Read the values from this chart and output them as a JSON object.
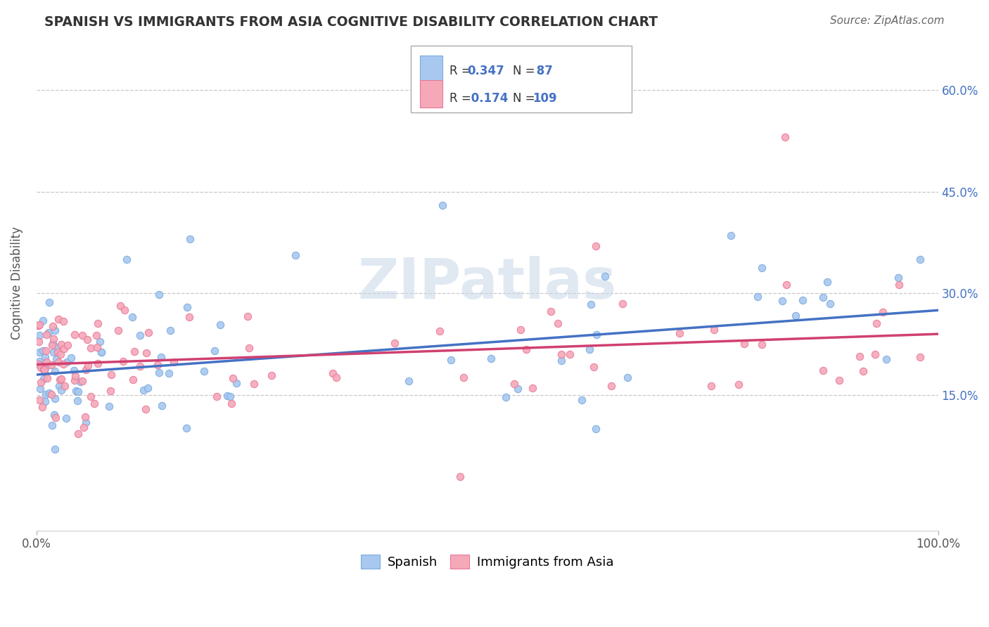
{
  "title": "SPANISH VS IMMIGRANTS FROM ASIA COGNITIVE DISABILITY CORRELATION CHART",
  "source": "Source: ZipAtlas.com",
  "ylabel": "Cognitive Disability",
  "xlim": [
    0,
    100
  ],
  "ylim": [
    -5,
    68
  ],
  "yticks": [
    15,
    30,
    45,
    60
  ],
  "ytick_labels": [
    "15.0%",
    "30.0%",
    "45.0%",
    "60.0%"
  ],
  "spanish_color": "#a8c8f0",
  "spanish_edge": "#7aabdf",
  "asian_color": "#f5a8b8",
  "asian_edge": "#e87a9a",
  "spanish_line_color": "#4472c4",
  "asian_line_color": "#d04070",
  "R_spanish": 0.347,
  "N_spanish": 87,
  "R_asian": 0.174,
  "N_asian": 109,
  "watermark": "ZIPatlas",
  "legend_labels": [
    "Spanish",
    "Immigrants from Asia"
  ],
  "background_color": "#ffffff",
  "grid_color": "#c8c8c8",
  "title_color": "#333333",
  "source_color": "#666666",
  "tick_color": "#4472c4",
  "sp_line_start": 18.0,
  "sp_line_end": 27.5,
  "as_line_start": 19.5,
  "as_line_end": 24.0
}
